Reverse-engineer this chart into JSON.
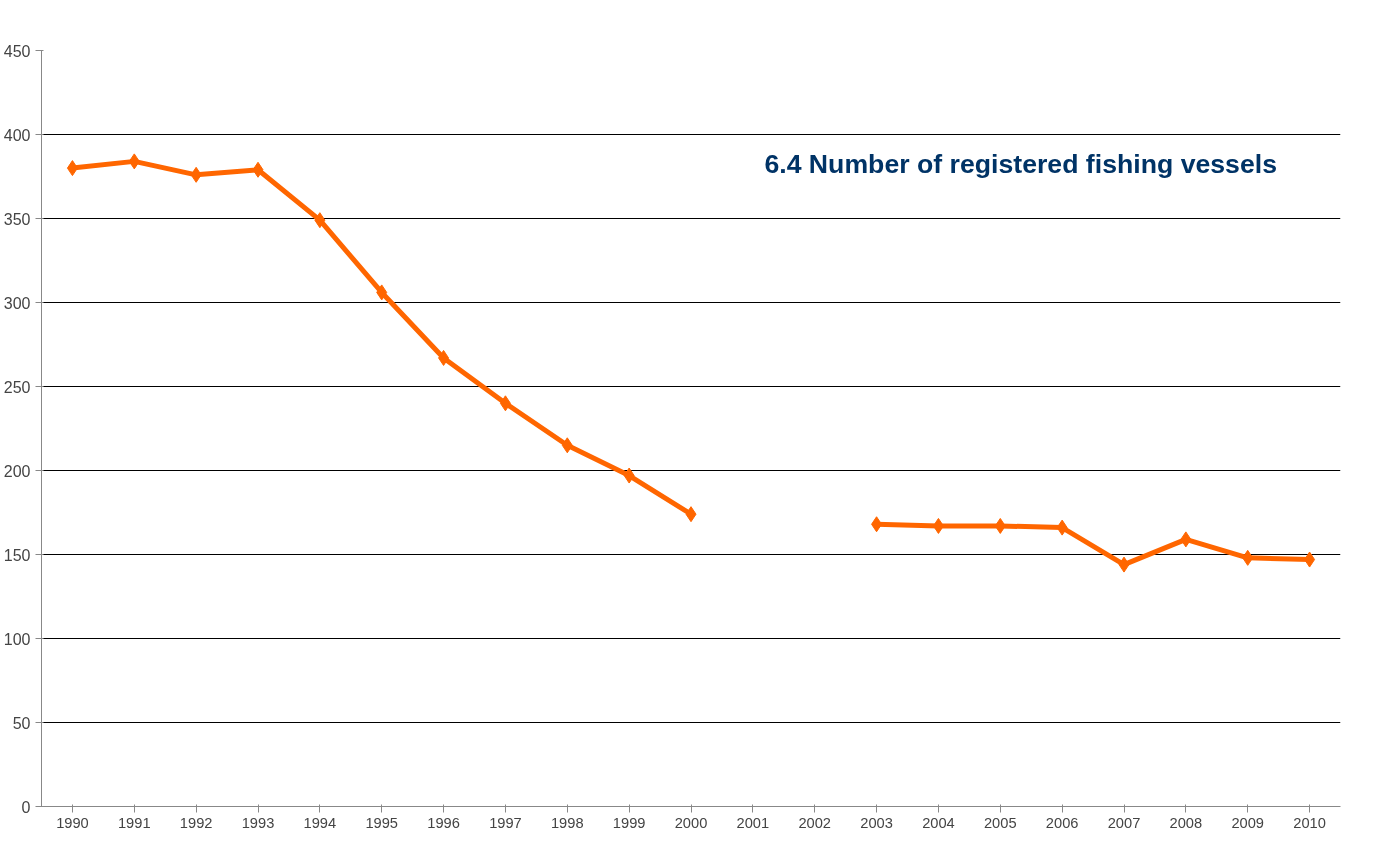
{
  "chart_data": {
    "type": "line",
    "title": "6.4 Number of registered fishing vessels",
    "categories": [
      "1990",
      "1991",
      "1992",
      "1993",
      "1994",
      "1995",
      "1996",
      "1997",
      "1998",
      "1999",
      "2000",
      "2001",
      "2002",
      "2003",
      "2004",
      "2005",
      "2006",
      "2007",
      "2008",
      "2009",
      "2010"
    ],
    "series": [
      {
        "color": "#ff6600",
        "values": [
          380,
          384,
          376,
          379,
          349,
          306,
          267,
          240,
          215,
          197,
          174,
          null,
          null,
          168,
          167,
          167,
          166,
          144,
          159,
          148,
          147
        ]
      }
    ],
    "ylim": [
      0,
      450
    ],
    "yticks": [
      0,
      50,
      100,
      150,
      200,
      250,
      300,
      350,
      400,
      450
    ],
    "grid": "y",
    "marker": "diamond",
    "line_style": "solid"
  }
}
